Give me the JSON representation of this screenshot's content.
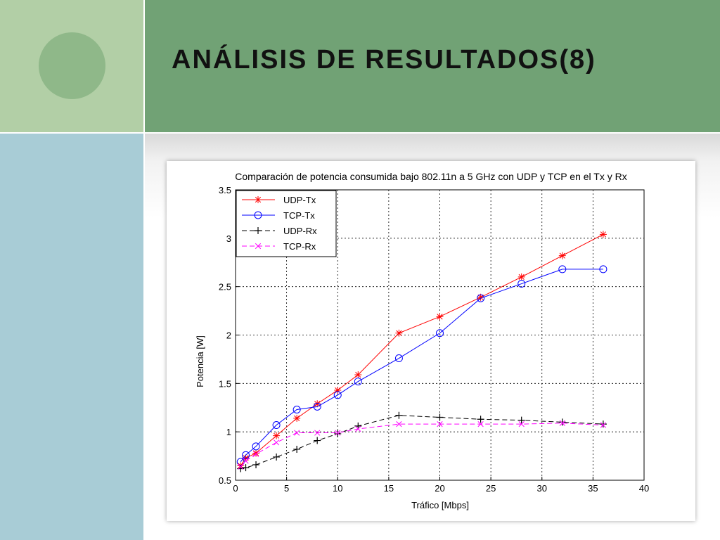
{
  "slide": {
    "title": "ANÁLISIS DE RESULTADOS(8)"
  },
  "colors": {
    "header_green": "#71a275",
    "side_light_green": "#b2cfa6",
    "side_circle": "#8fb889",
    "side_blue": "#a8ccd6"
  },
  "chart_data": {
    "type": "line",
    "title": "Comparación de potencia consumida bajo 802.11n a 5 GHz con UDP y TCP en el Tx y Rx",
    "xlabel": "Tráfico [Mbps]",
    "ylabel": "Potencia [W]",
    "xlim": [
      0,
      40
    ],
    "ylim": [
      0.5,
      3.5
    ],
    "xticks": [
      0,
      5,
      10,
      15,
      20,
      25,
      30,
      35,
      40
    ],
    "xtick_labels": [
      "0",
      "5",
      "10",
      "15",
      "20",
      "25",
      "30",
      "35",
      "40"
    ],
    "yticks": [
      0.5,
      1,
      1.5,
      2,
      2.5,
      3,
      3.5
    ],
    "ytick_labels": [
      "0.5",
      "1",
      "1.5",
      "2",
      "2.5",
      "3",
      "3.5"
    ],
    "grid": true,
    "grid_style": "dotted",
    "legend_position": "top-left",
    "series": [
      {
        "name": "UDP-Tx",
        "color": "#ff0000",
        "marker": "star",
        "line": "solid",
        "x": [
          0.5,
          1,
          2,
          4,
          6,
          8,
          10,
          12,
          16,
          20,
          24,
          28,
          32,
          36
        ],
        "y": [
          0.65,
          0.73,
          0.78,
          0.96,
          1.14,
          1.29,
          1.43,
          1.59,
          2.02,
          2.19,
          2.39,
          2.6,
          2.82,
          3.04
        ]
      },
      {
        "name": "TCP-Tx",
        "color": "#0000ff",
        "marker": "circle",
        "line": "solid",
        "x": [
          0.5,
          1,
          2,
          4,
          6,
          8,
          10,
          12,
          16,
          20,
          24,
          28,
          32,
          36
        ],
        "y": [
          0.69,
          0.76,
          0.85,
          1.07,
          1.23,
          1.26,
          1.38,
          1.52,
          1.76,
          2.02,
          2.38,
          2.53,
          2.68,
          2.68
        ]
      },
      {
        "name": "UDP-Rx",
        "color": "#000000",
        "marker": "plus",
        "line": "dashed",
        "x": [
          0.5,
          1,
          2,
          4,
          6,
          8,
          10,
          12,
          16,
          20,
          24,
          28,
          32,
          36
        ],
        "y": [
          0.62,
          0.63,
          0.66,
          0.74,
          0.82,
          0.91,
          0.98,
          1.06,
          1.17,
          1.15,
          1.13,
          1.12,
          1.1,
          1.08
        ]
      },
      {
        "name": "TCP-Rx",
        "color": "#ff00ff",
        "marker": "x",
        "line": "dashed",
        "x": [
          0.5,
          1,
          2,
          4,
          6,
          8,
          10,
          12,
          16,
          20,
          24,
          28,
          32,
          36
        ],
        "y": [
          0.64,
          0.7,
          0.77,
          0.89,
          0.99,
          0.99,
          0.99,
          1.03,
          1.08,
          1.08,
          1.08,
          1.08,
          1.09,
          1.07
        ]
      }
    ]
  }
}
